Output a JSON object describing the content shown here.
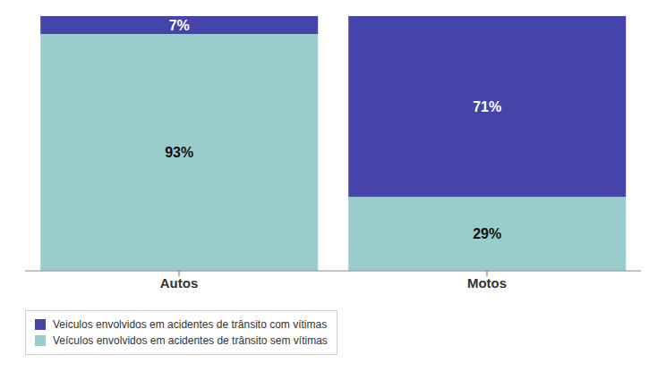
{
  "chart_data": {
    "type": "bar",
    "stacked": true,
    "categories": [
      "Autos",
      "Motos"
    ],
    "series": [
      {
        "name": "Veículos envolvidos em acidentes de trânsito sem vítimas",
        "color": "#99cccc",
        "values": [
          93,
          29
        ],
        "value_labels": [
          "93%",
          "29%"
        ]
      },
      {
        "name": "Veiculos envolvidos em acidentes de trânsito com vítimas",
        "color": "#4444aa",
        "values": [
          7,
          71
        ],
        "value_labels": [
          "7%",
          "71%"
        ]
      }
    ],
    "ylim": [
      0,
      100
    ],
    "data_labels": true,
    "tick_labels": "x",
    "legend": "bottom",
    "grid": false
  }
}
